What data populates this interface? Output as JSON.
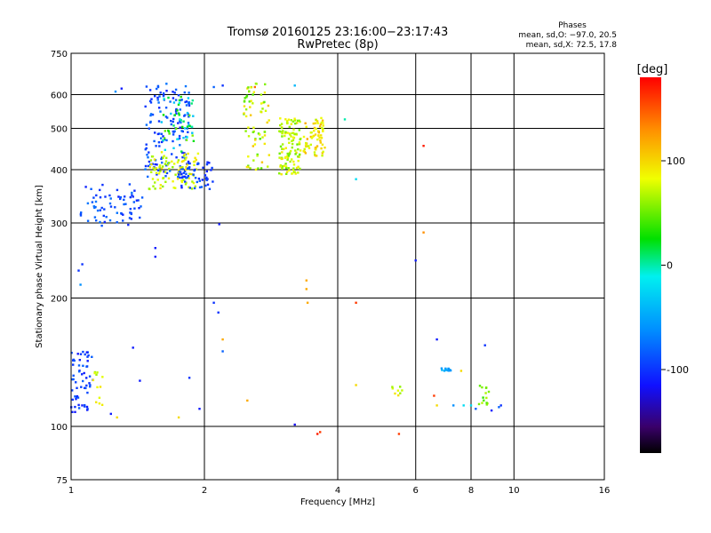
{
  "chart_data": {
    "type": "scatter",
    "title": "Tromsø 20160125 23:16:00−23:17:43",
    "subtitle": "RwPretec (8p)",
    "xlabel": "Frequency [MHz]",
    "ylabel": "Stationary phase Virtual Height [km]",
    "x_scale": "log2",
    "y_scale": "log",
    "xlim": [
      1,
      16
    ],
    "ylim": [
      75,
      750
    ],
    "x_ticks": [
      1,
      2,
      4,
      6,
      8,
      10,
      16
    ],
    "y_ticks": [
      75,
      100,
      200,
      300,
      400,
      500,
      600,
      750
    ],
    "grid": true,
    "info": {
      "heading": "Phases",
      "line1": "mean, sd,O: −97.0, 20.5",
      "line2": "mean, sd,X:  72.5, 17.8"
    },
    "colorbar": {
      "label": "[deg]",
      "range": [
        -180,
        180
      ],
      "ticks": [
        -100,
        0,
        100
      ]
    },
    "clusters": [
      {
        "x": [
          1.05,
          1.45
        ],
        "y": [
          295,
          370
        ],
        "phase": [
          -110,
          -70
        ],
        "n": 70
      },
      {
        "x": [
          1.47,
          1.85
        ],
        "y": [
          380,
          640
        ],
        "phase": [
          -110,
          -70
        ],
        "n": 150
      },
      {
        "x": [
          1.5,
          1.95
        ],
        "y": [
          360,
          440
        ],
        "phase": [
          60,
          100
        ],
        "n": 90
      },
      {
        "x": [
          1.6,
          1.9
        ],
        "y": [
          440,
          600
        ],
        "phase": [
          -40,
          60
        ],
        "n": 50
      },
      {
        "x": [
          1.75,
          2.1
        ],
        "y": [
          360,
          420
        ],
        "phase": [
          -110,
          -80
        ],
        "n": 50
      },
      {
        "x": [
          2.45,
          2.8
        ],
        "y": [
          400,
          640
        ],
        "phase": [
          40,
          110
        ],
        "n": 70
      },
      {
        "x": [
          2.95,
          3.3
        ],
        "y": [
          390,
          530
        ],
        "phase": [
          50,
          100
        ],
        "n": 120
      },
      {
        "x": [
          3.35,
          3.75
        ],
        "y": [
          430,
          530
        ],
        "phase": [
          70,
          120
        ],
        "n": 70
      },
      {
        "x": [
          1.0,
          1.12
        ],
        "y": [
          108,
          150
        ],
        "phase": [
          -115,
          -80
        ],
        "n": 60
      },
      {
        "x": [
          1.12,
          1.18
        ],
        "y": [
          112,
          135
        ],
        "phase": [
          60,
          100
        ],
        "n": 12
      },
      {
        "x": [
          6.85,
          7.2
        ],
        "y": [
          135,
          137
        ],
        "phase": [
          -60,
          -30
        ],
        "n": 14
      },
      {
        "x": [
          8.3,
          8.8
        ],
        "y": [
          112,
          125
        ],
        "phase": [
          30,
          70
        ],
        "n": 14
      },
      {
        "x": [
          5.3,
          5.6
        ],
        "y": [
          118,
          124
        ],
        "phase": [
          60,
          100
        ],
        "n": 8
      }
    ],
    "points": [
      {
        "x": 1.26,
        "y": 610,
        "phase": -60
      },
      {
        "x": 1.3,
        "y": 620,
        "phase": -110
      },
      {
        "x": 1.06,
        "y": 240,
        "phase": -100
      },
      {
        "x": 1.04,
        "y": 232,
        "phase": -100
      },
      {
        "x": 1.05,
        "y": 215,
        "phase": -60
      },
      {
        "x": 1.55,
        "y": 262,
        "phase": -110
      },
      {
        "x": 1.55,
        "y": 250,
        "phase": -110
      },
      {
        "x": 2.16,
        "y": 298,
        "phase": -110
      },
      {
        "x": 2.1,
        "y": 195,
        "phase": -100
      },
      {
        "x": 2.15,
        "y": 185,
        "phase": -100
      },
      {
        "x": 2.2,
        "y": 160,
        "phase": 120
      },
      {
        "x": 2.2,
        "y": 150,
        "phase": -80
      },
      {
        "x": 1.85,
        "y": 130,
        "phase": -100
      },
      {
        "x": 2.5,
        "y": 115,
        "phase": 120
      },
      {
        "x": 1.95,
        "y": 110,
        "phase": -110
      },
      {
        "x": 1.75,
        "y": 105,
        "phase": 100
      },
      {
        "x": 1.23,
        "y": 107,
        "phase": -110
      },
      {
        "x": 1.27,
        "y": 105,
        "phase": 100
      },
      {
        "x": 1.43,
        "y": 128,
        "phase": -110
      },
      {
        "x": 1.38,
        "y": 153,
        "phase": -110
      },
      {
        "x": 3.4,
        "y": 220,
        "phase": 120
      },
      {
        "x": 3.4,
        "y": 210,
        "phase": 120
      },
      {
        "x": 3.42,
        "y": 195,
        "phase": 120
      },
      {
        "x": 4.4,
        "y": 195,
        "phase": 160
      },
      {
        "x": 3.2,
        "y": 101,
        "phase": -120
      },
      {
        "x": 3.6,
        "y": 96,
        "phase": 170
      },
      {
        "x": 3.65,
        "y": 97,
        "phase": 160
      },
      {
        "x": 5.5,
        "y": 96,
        "phase": 160
      },
      {
        "x": 4.4,
        "y": 125,
        "phase": 100
      },
      {
        "x": 4.4,
        "y": 380,
        "phase": -20
      },
      {
        "x": 4.15,
        "y": 525,
        "phase": 0
      },
      {
        "x": 6.25,
        "y": 455,
        "phase": 170
      },
      {
        "x": 6.25,
        "y": 285,
        "phase": 130
      },
      {
        "x": 6.0,
        "y": 245,
        "phase": -110
      },
      {
        "x": 6.7,
        "y": 160,
        "phase": -110
      },
      {
        "x": 8.6,
        "y": 155,
        "phase": -100
      },
      {
        "x": 6.6,
        "y": 118,
        "phase": 160
      },
      {
        "x": 6.7,
        "y": 112,
        "phase": 100
      },
      {
        "x": 7.6,
        "y": 135,
        "phase": 100
      },
      {
        "x": 7.3,
        "y": 112,
        "phase": -60
      },
      {
        "x": 7.7,
        "y": 112,
        "phase": -20
      },
      {
        "x": 8.0,
        "y": 112,
        "phase": -20
      },
      {
        "x": 8.2,
        "y": 110,
        "phase": -80
      },
      {
        "x": 8.9,
        "y": 109,
        "phase": -110
      },
      {
        "x": 9.25,
        "y": 111,
        "phase": -80
      },
      {
        "x": 9.35,
        "y": 112,
        "phase": -100
      },
      {
        "x": 2.2,
        "y": 630,
        "phase": -100
      },
      {
        "x": 2.1,
        "y": 625,
        "phase": -80
      },
      {
        "x": 2.6,
        "y": 625,
        "phase": 140
      },
      {
        "x": 3.2,
        "y": 630,
        "phase": -40
      }
    ]
  }
}
